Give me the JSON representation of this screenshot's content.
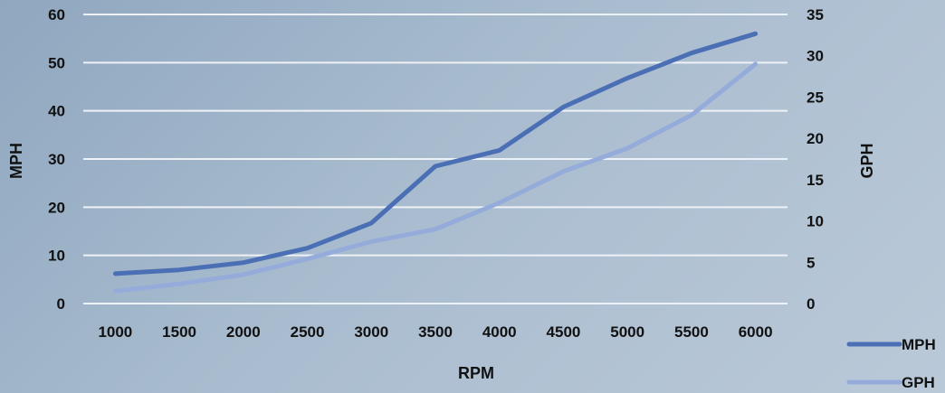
{
  "chart_data": {
    "type": "line",
    "x": [
      1000,
      1500,
      2000,
      2500,
      3000,
      3500,
      4000,
      4500,
      5000,
      5500,
      6000
    ],
    "categories": [
      "1000",
      "1500",
      "2000",
      "2500",
      "3000",
      "3500",
      "4000",
      "4500",
      "5000",
      "5500",
      "6000"
    ],
    "series": [
      {
        "name": "MPH",
        "axis": "left",
        "color": "#4a6fb5",
        "values": [
          6.2,
          7.0,
          8.5,
          11.5,
          16.7,
          28.5,
          31.8,
          40.8,
          46.8,
          52.0,
          56.0
        ]
      },
      {
        "name": "GPH",
        "axis": "right",
        "color": "#95acdb",
        "values": [
          1.5,
          2.4,
          3.5,
          5.4,
          7.5,
          9.0,
          12.2,
          16.0,
          18.8,
          22.8,
          29.0
        ]
      }
    ],
    "xlabel": "RPM",
    "ylabel": "MPH",
    "y2label": "GPH",
    "ylim": [
      0,
      60
    ],
    "y2lim": [
      0,
      35
    ],
    "yticks": [
      "0",
      "10",
      "20",
      "30",
      "40",
      "50",
      "60"
    ],
    "y2ticks": [
      "0",
      "5",
      "10",
      "15",
      "20",
      "25",
      "30",
      "35"
    ],
    "grid": true,
    "legend_position": "bottom-right"
  }
}
